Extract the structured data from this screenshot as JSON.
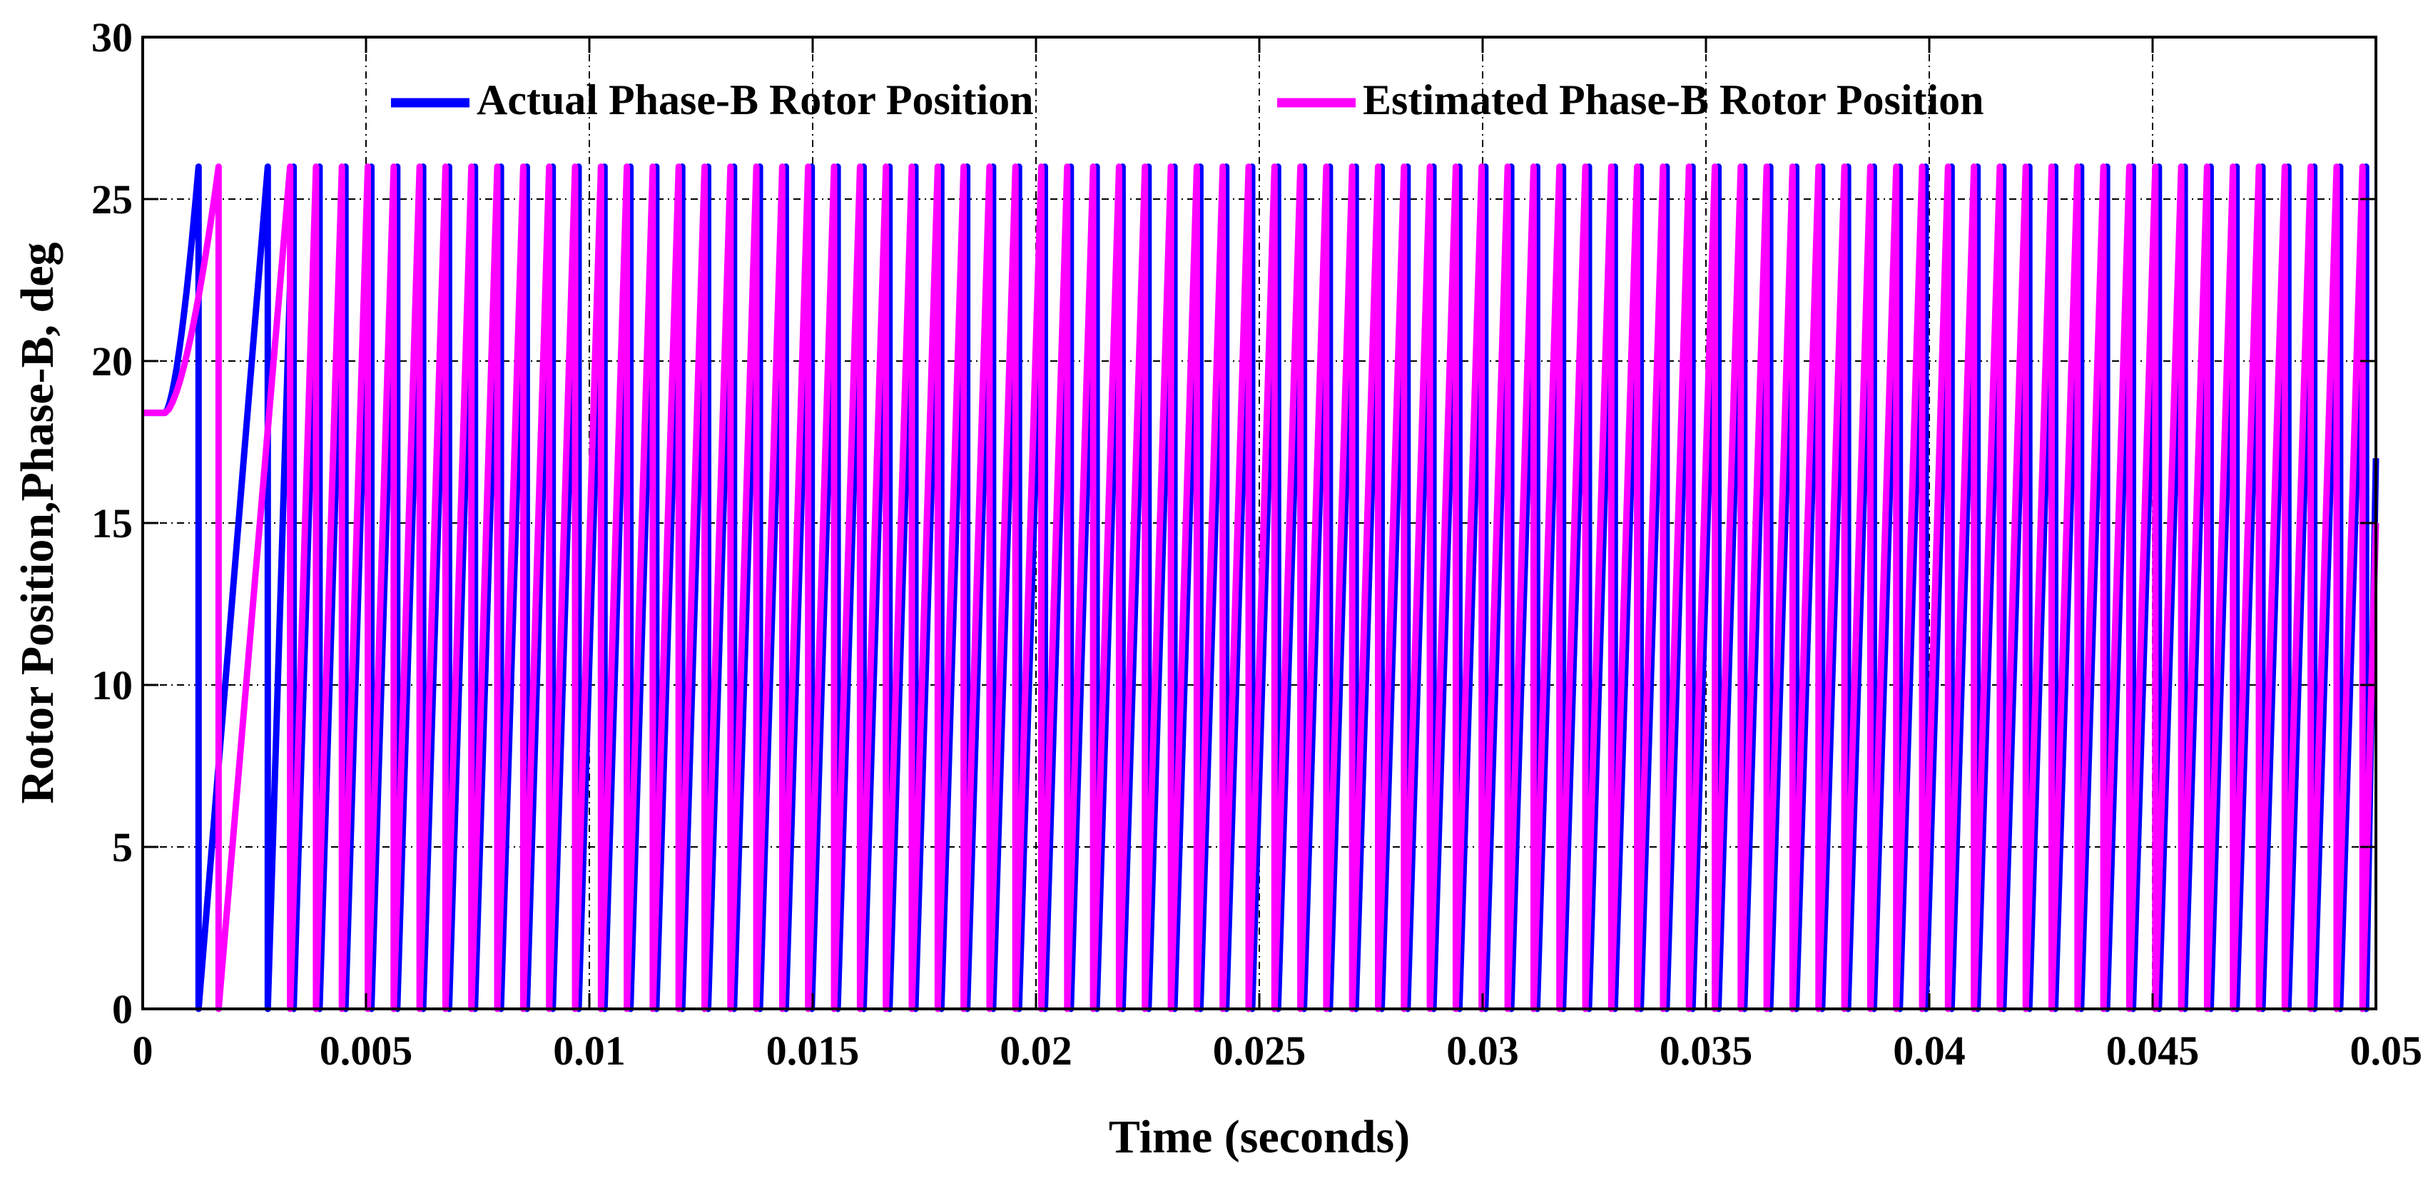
{
  "chart_data": {
    "type": "line",
    "title": "",
    "xlabel": "Time (seconds)",
    "ylabel": "Rotor Position,Phase-B, deg",
    "xlim": [
      0,
      0.05
    ],
    "ylim": [
      0,
      30
    ],
    "x_ticks": [
      0,
      0.005,
      0.01,
      0.015,
      0.02,
      0.025,
      0.03,
      0.035,
      0.04,
      0.045,
      0.05
    ],
    "x_tick_labels": [
      "0",
      "0.005",
      "0.01",
      "0.015",
      "0.02",
      "0.025",
      "0.03",
      "0.035",
      "0.04",
      "0.045",
      "0.05"
    ],
    "y_ticks": [
      0,
      5,
      10,
      15,
      20,
      25,
      30
    ],
    "y_tick_labels": [
      "0",
      "5",
      "10",
      "15",
      "20",
      "25",
      "30"
    ],
    "grid": true,
    "grid_style": "dash-dot",
    "legend_position": "top",
    "series": [
      {
        "name": "Actual Phase-B Rotor Position",
        "color": "#0000ff",
        "waveform": "sawtooth",
        "initial_value": 18.4,
        "initial_hold_until": 0.0005,
        "peak_value": 26,
        "min_value": 0,
        "first_reset_time": 0.00125,
        "second_reset_time": 0.0028,
        "steady_period": 0.00058,
        "final_value": 17
      },
      {
        "name": "Estimated Phase-B Rotor Position",
        "color": "#ff00ff",
        "waveform": "sawtooth",
        "initial_value": 18.4,
        "initial_hold_until": 0.0005,
        "peak_value": 26,
        "min_value": 0,
        "first_reset_time": 0.0017,
        "second_reset_time": 0.0033,
        "steady_period": 0.00058,
        "final_value": 15
      }
    ]
  }
}
